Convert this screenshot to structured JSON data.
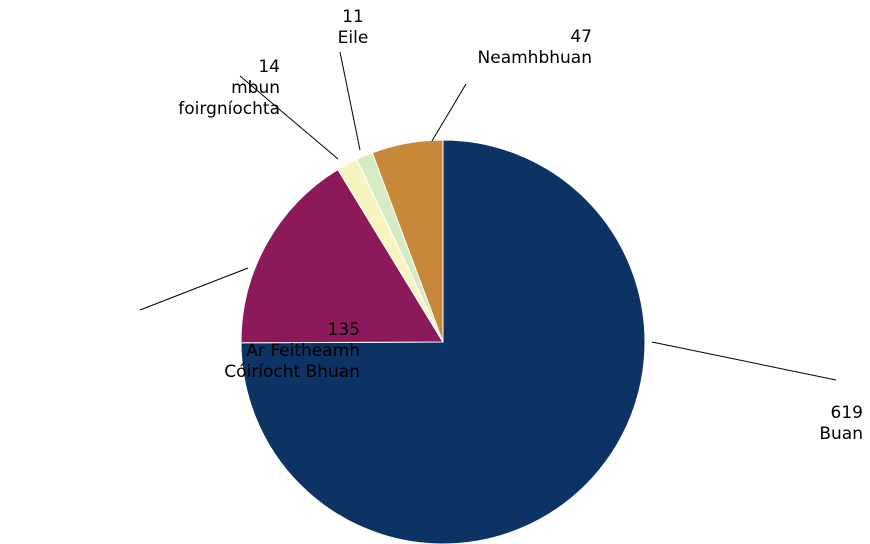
{
  "chart_data": {
    "type": "pie",
    "title": "",
    "slices": [
      {
        "value": 619,
        "label": "Buan",
        "color": "#0d3264"
      },
      {
        "value": 135,
        "label": "Ar Feitheamh Cóiríocht Bhuan",
        "color": "#8c1a5a"
      },
      {
        "value": 14,
        "label": "mbun foirgníochta",
        "color": "#f8f4c0"
      },
      {
        "value": 11,
        "label": "Eile",
        "color": "#d6ebc4"
      },
      {
        "value": 47,
        "label": "Neamhbhuan",
        "color": "#c8883a"
      }
    ],
    "label_lines": {
      "Buan": [
        "619",
        "Buan"
      ],
      "Ar Feitheamh Cóiríocht Bhuan": [
        "135",
        "Ar Feitheamh",
        "Cóiríocht Bhuan"
      ],
      "mbun foirgníochta": [
        "14",
        "mbun",
        "foirgníochta"
      ],
      "Eile": [
        "11",
        "Eile"
      ],
      "Neamhbhuan": [
        "47",
        "Neamhbhuan"
      ]
    },
    "start": "12 o'clock",
    "direction": "clockwise",
    "legend": "none"
  }
}
